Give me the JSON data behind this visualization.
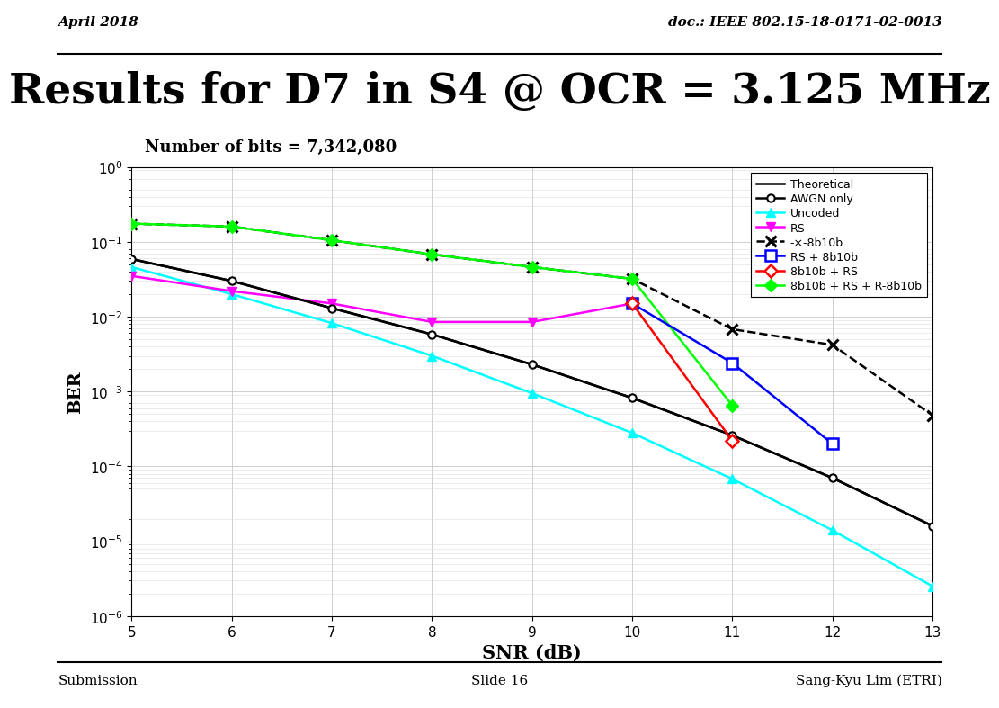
{
  "title": "Results for D7 in S4 @ OCR = 3.125 MHz",
  "subtitle": "Number of bits = 7,342,080",
  "header_left": "April 2018",
  "header_right": "doc.: IEEE 802.15-18-0171-02-0013",
  "footer_left": "Submission",
  "footer_center": "Slide 16",
  "footer_right": "Sang-Kyu Lim (ETRI)",
  "xlabel": "SNR (dB)",
  "ylabel": "BER",
  "snr": [
    5,
    6,
    7,
    8,
    9,
    10,
    11,
    12,
    13
  ],
  "theoretical": [
    0.059,
    0.03,
    0.013,
    0.0058,
    0.0023,
    0.00082,
    0.00026,
    7e-05,
    1.6e-05
  ],
  "awgn_only": [
    0.059,
    0.03,
    0.013,
    0.0058,
    0.0023,
    0.00082,
    0.00026,
    7e-05,
    1.6e-05
  ],
  "uncoded": [
    0.046,
    0.02,
    0.0082,
    0.003,
    0.00095,
    0.00028,
    6.8e-05,
    1.4e-05,
    2.5e-06
  ],
  "rs": [
    0.035,
    0.022,
    0.015,
    0.0085,
    0.0085,
    0.015,
    null,
    null,
    null
  ],
  "b8b10b": [
    0.175,
    0.16,
    0.105,
    0.068,
    0.046,
    0.032,
    0.0068,
    0.0042,
    0.00048
  ],
  "rs_8b10b": [
    null,
    null,
    null,
    null,
    null,
    0.015,
    0.0024,
    0.0002,
    null
  ],
  "b8b10b_rs": [
    null,
    null,
    null,
    null,
    null,
    0.015,
    0.00022,
    null,
    null
  ],
  "b8b10b_rs_r8b10b": [
    0.175,
    0.16,
    0.105,
    0.068,
    0.046,
    0.032,
    0.00065,
    null,
    null
  ],
  "ylim_min": 1e-06,
  "ylim_max": 1.0,
  "xlim_min": 5,
  "xlim_max": 13
}
